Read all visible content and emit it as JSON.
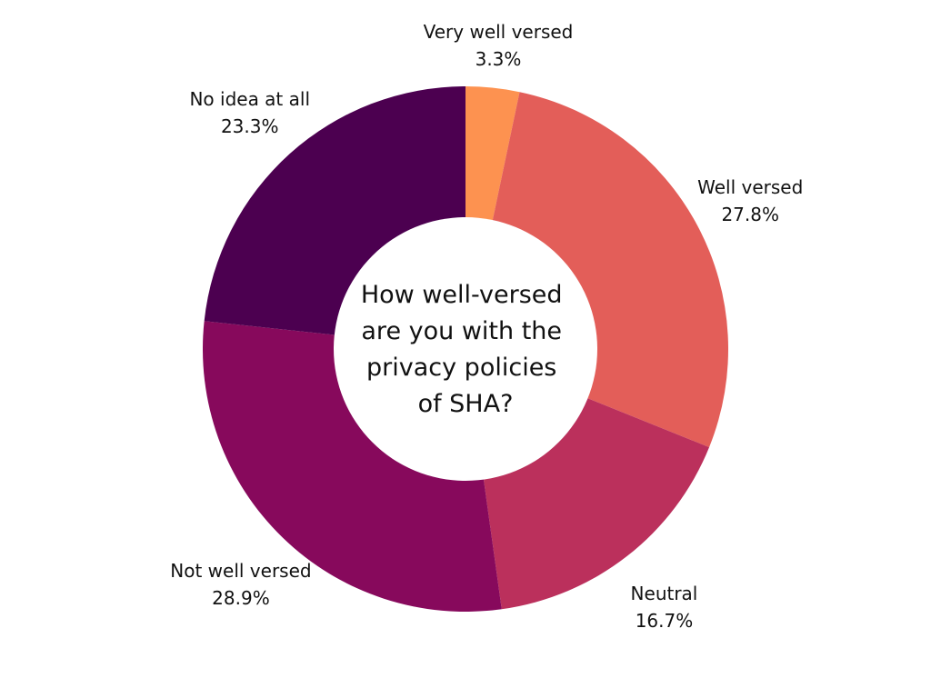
{
  "chart_data": {
    "type": "pie",
    "variant": "donut",
    "title_lines": [
      "How well-versed",
      "are you with the",
      "privacy policies",
      "of SHA?"
    ],
    "slices": [
      {
        "label": "Very well versed",
        "value": 3.3,
        "value_label": "3.3%",
        "color": "#fd9250"
      },
      {
        "label": "Well versed",
        "value": 27.8,
        "value_label": "27.8%",
        "color": "#e35e59"
      },
      {
        "label": "Neutral",
        "value": 16.7,
        "value_label": "16.7%",
        "color": "#bb305c"
      },
      {
        "label": "Not well versed",
        "value": 28.9,
        "value_label": "28.9%",
        "color": "#87095c"
      },
      {
        "label": "No idea at all",
        "value": 23.3,
        "value_label": "23.3%",
        "color": "#4c0050"
      }
    ],
    "start": "top",
    "direction": "clockwise",
    "legend": "none"
  }
}
